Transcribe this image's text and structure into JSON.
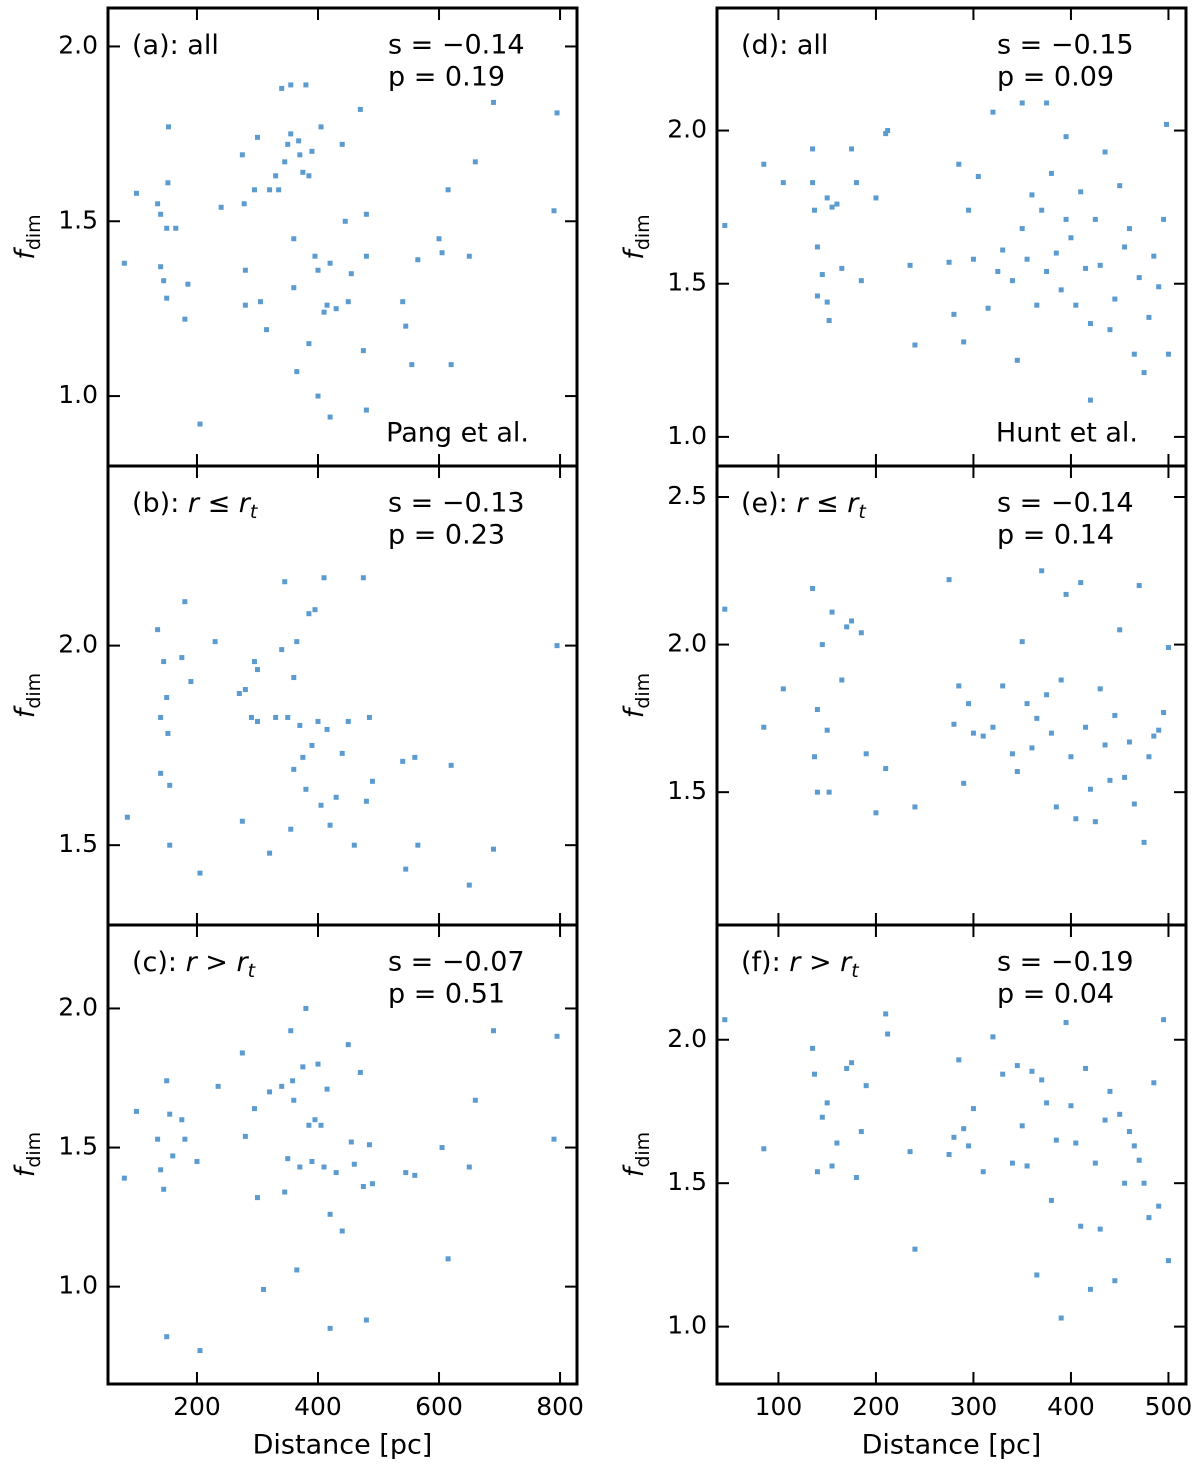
{
  "chart_data": [
    {
      "type": "scatter",
      "label": "(a): all",
      "stats": [
        "s = −0.14",
        "p = 0.19"
      ],
      "source": "Pang et al.",
      "ylabel": "f",
      "ylabel_sub": "dim",
      "color": "#5b9bd0",
      "xlim": [
        53,
        828
      ],
      "ylim": [
        0.8,
        2.11
      ],
      "xticks": [
        200,
        400,
        600,
        800
      ],
      "yticks": [
        {
          "value": 1,
          "label": "1.0"
        },
        1.5,
        {
          "value": 2,
          "label": "2.0"
        }
      ],
      "x": [
        80,
        100,
        135,
        140,
        140,
        145,
        150,
        150,
        152,
        153,
        165,
        180,
        185,
        205,
        240,
        275,
        278,
        280,
        280,
        295,
        300,
        305,
        315,
        320,
        330,
        335,
        340,
        345,
        350,
        355,
        355,
        360,
        360,
        365,
        368,
        370,
        375,
        380,
        385,
        385,
        390,
        395,
        400,
        400,
        405,
        410,
        415,
        420,
        420,
        430,
        440,
        445,
        450,
        455,
        470,
        475,
        480,
        480,
        480,
        540,
        545,
        555,
        565,
        600,
        605,
        615,
        620,
        650,
        660,
        690,
        790,
        795
      ],
      "y": [
        1.38,
        1.58,
        1.55,
        1.52,
        1.37,
        1.33,
        1.28,
        1.48,
        1.61,
        1.77,
        1.48,
        1.22,
        1.32,
        0.92,
        1.54,
        1.69,
        1.55,
        1.26,
        1.36,
        1.59,
        1.74,
        1.27,
        1.19,
        1.59,
        1.63,
        1.59,
        1.88,
        1.67,
        1.72,
        1.89,
        1.75,
        1.45,
        1.31,
        1.07,
        1.73,
        1.69,
        1.64,
        1.89,
        1.15,
        1.63,
        1.7,
        1.4,
        1.36,
        1.0,
        1.77,
        1.24,
        1.26,
        1.38,
        0.94,
        1.25,
        1.72,
        1.5,
        1.27,
        1.35,
        1.82,
        1.13,
        1.4,
        1.52,
        0.96,
        1.27,
        1.2,
        1.09,
        1.39,
        1.45,
        1.41,
        1.59,
        1.09,
        1.4,
        1.67,
        1.84,
        1.53,
        1.81
      ]
    },
    {
      "type": "scatter",
      "label": "(b): ",
      "label_math": "r ≤ r",
      "label_sub": "t",
      "stats": [
        "s = −0.13",
        "p = 0.23"
      ],
      "ylabel": "f",
      "ylabel_sub": "dim",
      "color": "#5b9bd0",
      "xlim": [
        53,
        828
      ],
      "ylim": [
        1.3,
        2.45
      ],
      "xticks": [
        200,
        400,
        600,
        800
      ],
      "yticks": [
        1.5,
        {
          "value": 2,
          "label": "2.0"
        }
      ],
      "x": [
        85,
        135,
        140,
        140,
        145,
        150,
        152,
        155,
        155,
        175,
        180,
        190,
        205,
        230,
        270,
        275,
        280,
        290,
        295,
        300,
        300,
        320,
        330,
        340,
        345,
        350,
        355,
        360,
        360,
        365,
        370,
        375,
        380,
        385,
        390,
        395,
        400,
        405,
        410,
        415,
        420,
        430,
        440,
        450,
        460,
        475,
        480,
        485,
        490,
        540,
        545,
        560,
        565,
        620,
        650,
        690,
        795
      ],
      "y": [
        1.57,
        2.04,
        1.82,
        1.68,
        1.96,
        1.87,
        1.78,
        1.5,
        1.65,
        1.97,
        2.11,
        1.91,
        1.43,
        2.01,
        1.88,
        1.56,
        1.89,
        1.82,
        1.96,
        1.94,
        1.81,
        1.48,
        1.82,
        1.99,
        2.16,
        1.82,
        1.54,
        1.92,
        1.69,
        2.01,
        1.8,
        1.72,
        1.64,
        2.08,
        1.75,
        2.09,
        1.81,
        1.6,
        2.17,
        1.79,
        1.55,
        1.62,
        1.73,
        1.81,
        1.5,
        2.17,
        1.61,
        1.82,
        1.66,
        1.71,
        1.44,
        1.72,
        1.5,
        1.7,
        1.4,
        1.49,
        2.0
      ]
    },
    {
      "type": "scatter",
      "label": "(c): ",
      "label_math": "r > r",
      "label_sub": "t",
      "stats": [
        "s = −0.07",
        "p = 0.51"
      ],
      "ylabel": "f",
      "ylabel_sub": "dim",
      "xlabel": "Distance [pc]",
      "color": "#5b9bd0",
      "xlim": [
        53,
        828
      ],
      "ylim": [
        0.65,
        2.3
      ],
      "xticks": [
        200,
        400,
        600,
        800
      ],
      "yticks": [
        {
          "value": 1,
          "label": "1.0"
        },
        1.5,
        {
          "value": 2,
          "label": "2.0"
        }
      ],
      "x": [
        80,
        100,
        135,
        140,
        145,
        150,
        150,
        155,
        160,
        175,
        180,
        200,
        205,
        235,
        275,
        280,
        295,
        300,
        310,
        320,
        340,
        345,
        350,
        355,
        358,
        360,
        365,
        370,
        375,
        380,
        385,
        390,
        395,
        400,
        405,
        410,
        415,
        420,
        420,
        430,
        440,
        450,
        455,
        460,
        470,
        475,
        480,
        485,
        490,
        545,
        560,
        605,
        615,
        650,
        660,
        690,
        790,
        795
      ],
      "y": [
        1.39,
        1.63,
        1.53,
        1.42,
        1.35,
        1.74,
        0.82,
        1.62,
        1.47,
        1.6,
        1.53,
        1.45,
        0.77,
        1.72,
        1.84,
        1.54,
        1.64,
        1.32,
        0.99,
        1.7,
        1.72,
        1.34,
        1.46,
        1.92,
        1.74,
        1.67,
        1.06,
        1.43,
        1.79,
        2.0,
        1.58,
        1.45,
        1.6,
        1.8,
        1.58,
        1.43,
        1.71,
        1.26,
        0.85,
        1.41,
        1.2,
        1.87,
        1.52,
        1.44,
        1.77,
        1.36,
        0.88,
        1.51,
        1.37,
        1.41,
        1.4,
        1.5,
        1.1,
        1.43,
        1.67,
        1.92,
        1.53,
        1.9
      ]
    },
    {
      "type": "scatter",
      "label": "(d): all",
      "stats": [
        "s = −0.15",
        "p = 0.09"
      ],
      "source": "Hunt et al.",
      "ylabel": "f",
      "ylabel_sub": "dim",
      "color": "#5b9bd0",
      "xlim": [
        37,
        518
      ],
      "ylim": [
        0.905,
        2.4
      ],
      "xticks": [
        100,
        200,
        300,
        400,
        500
      ],
      "yticks": [
        {
          "value": 1,
          "label": "1.0"
        },
        1.5,
        {
          "value": 2,
          "label": "2.0"
        }
      ],
      "x": [
        45,
        85,
        105,
        135,
        135,
        137,
        140,
        140,
        145,
        150,
        150,
        152,
        155,
        160,
        165,
        175,
        180,
        185,
        200,
        210,
        212,
        235,
        240,
        275,
        280,
        285,
        290,
        295,
        300,
        305,
        315,
        320,
        325,
        330,
        340,
        345,
        350,
        355,
        360,
        365,
        370,
        375,
        380,
        385,
        390,
        395,
        400,
        405,
        410,
        415,
        420,
        425,
        430,
        435,
        440,
        445,
        450,
        455,
        460,
        465,
        470,
        475,
        480,
        485,
        490,
        495,
        498,
        500,
        350,
        375,
        395,
        420
      ],
      "y": [
        1.69,
        1.89,
        1.83,
        1.94,
        1.83,
        1.74,
        1.62,
        1.46,
        1.53,
        1.78,
        1.44,
        1.38,
        1.75,
        1.76,
        1.55,
        1.94,
        1.83,
        1.51,
        1.78,
        1.99,
        2.0,
        1.56,
        1.3,
        1.57,
        1.4,
        1.89,
        1.31,
        1.74,
        1.58,
        1.85,
        1.42,
        2.06,
        1.54,
        1.61,
        1.51,
        1.25,
        1.68,
        1.58,
        1.79,
        1.43,
        1.74,
        1.54,
        1.86,
        1.6,
        1.48,
        1.71,
        1.65,
        1.43,
        1.8,
        1.55,
        1.37,
        1.71,
        1.56,
        1.93,
        1.35,
        1.45,
        1.82,
        1.62,
        1.68,
        1.27,
        1.52,
        1.21,
        1.39,
        1.59,
        1.49,
        1.71,
        2.02,
        1.27,
        2.09,
        2.09,
        1.98,
        1.12
      ]
    },
    {
      "type": "scatter",
      "label": "(e): ",
      "label_math": "r ≤ r",
      "label_sub": "t",
      "stats": [
        "s = −0.14",
        "p = 0.14"
      ],
      "ylabel": "f",
      "ylabel_sub": "dim",
      "color": "#5b9bd0",
      "xlim": [
        37,
        518
      ],
      "ylim": [
        1.05,
        2.605
      ],
      "xticks": [
        100,
        200,
        300,
        400,
        500
      ],
      "yticks": [
        1.5,
        {
          "value": 2,
          "label": "2.0"
        },
        2.5
      ],
      "x": [
        45,
        85,
        105,
        135,
        137,
        140,
        140,
        145,
        150,
        152,
        155,
        165,
        170,
        175,
        185,
        190,
        200,
        210,
        240,
        275,
        280,
        285,
        290,
        295,
        300,
        310,
        320,
        330,
        340,
        345,
        350,
        355,
        360,
        365,
        370,
        375,
        380,
        385,
        390,
        395,
        400,
        405,
        410,
        415,
        420,
        425,
        430,
        435,
        440,
        445,
        450,
        455,
        460,
        465,
        470,
        475,
        480,
        485,
        490,
        495,
        500
      ],
      "y": [
        2.12,
        1.72,
        1.85,
        2.19,
        1.62,
        1.5,
        1.78,
        2.0,
        1.71,
        1.5,
        2.11,
        1.88,
        2.06,
        2.08,
        2.04,
        1.63,
        1.43,
        1.58,
        1.45,
        2.22,
        1.73,
        1.86,
        1.53,
        1.8,
        1.7,
        1.69,
        1.72,
        1.86,
        1.63,
        1.57,
        2.01,
        1.8,
        1.65,
        1.75,
        2.25,
        1.83,
        1.7,
        1.45,
        1.88,
        2.17,
        1.62,
        1.41,
        2.21,
        1.72,
        1.51,
        1.4,
        1.85,
        1.66,
        1.54,
        1.76,
        2.05,
        1.55,
        1.67,
        1.46,
        2.2,
        1.33,
        1.62,
        1.69,
        1.71,
        1.77,
        1.99
      ]
    },
    {
      "type": "scatter",
      "label": "(f): ",
      "label_math": "r > r",
      "label_sub": "t",
      "stats": [
        "s = −0.19",
        "p = 0.04"
      ],
      "ylabel": "f",
      "ylabel_sub": "dim",
      "xlabel": "Distance [pc]",
      "color": "#5b9bd0",
      "xlim": [
        37,
        518
      ],
      "ylim": [
        0.8,
        2.4
      ],
      "xticks": [
        100,
        200,
        300,
        400,
        500
      ],
      "yticks": [
        {
          "value": 1,
          "label": "1.0"
        },
        1.5,
        {
          "value": 2,
          "label": "2.0"
        }
      ],
      "x": [
        45,
        85,
        135,
        137,
        140,
        145,
        150,
        155,
        160,
        170,
        175,
        180,
        185,
        190,
        210,
        212,
        235,
        240,
        275,
        280,
        285,
        290,
        295,
        300,
        310,
        320,
        330,
        340,
        345,
        350,
        355,
        360,
        365,
        370,
        375,
        380,
        385,
        390,
        395,
        400,
        405,
        410,
        415,
        420,
        425,
        430,
        435,
        440,
        445,
        450,
        455,
        460,
        465,
        470,
        475,
        480,
        485,
        490,
        495,
        500
      ],
      "y": [
        2.07,
        1.62,
        1.97,
        1.88,
        1.54,
        1.73,
        1.78,
        1.56,
        1.64,
        1.9,
        1.92,
        1.52,
        1.68,
        1.84,
        2.09,
        2.02,
        1.61,
        1.27,
        1.6,
        1.66,
        1.93,
        1.69,
        1.63,
        1.76,
        1.54,
        2.01,
        1.88,
        1.57,
        1.91,
        1.7,
        1.56,
        1.89,
        1.18,
        1.86,
        1.78,
        1.44,
        1.65,
        1.03,
        2.06,
        1.77,
        1.64,
        1.35,
        1.9,
        1.13,
        1.57,
        1.34,
        1.72,
        1.82,
        1.16,
        1.74,
        1.5,
        1.68,
        1.63,
        1.58,
        1.5,
        1.38,
        1.85,
        1.42,
        2.07,
        1.23
      ]
    }
  ]
}
